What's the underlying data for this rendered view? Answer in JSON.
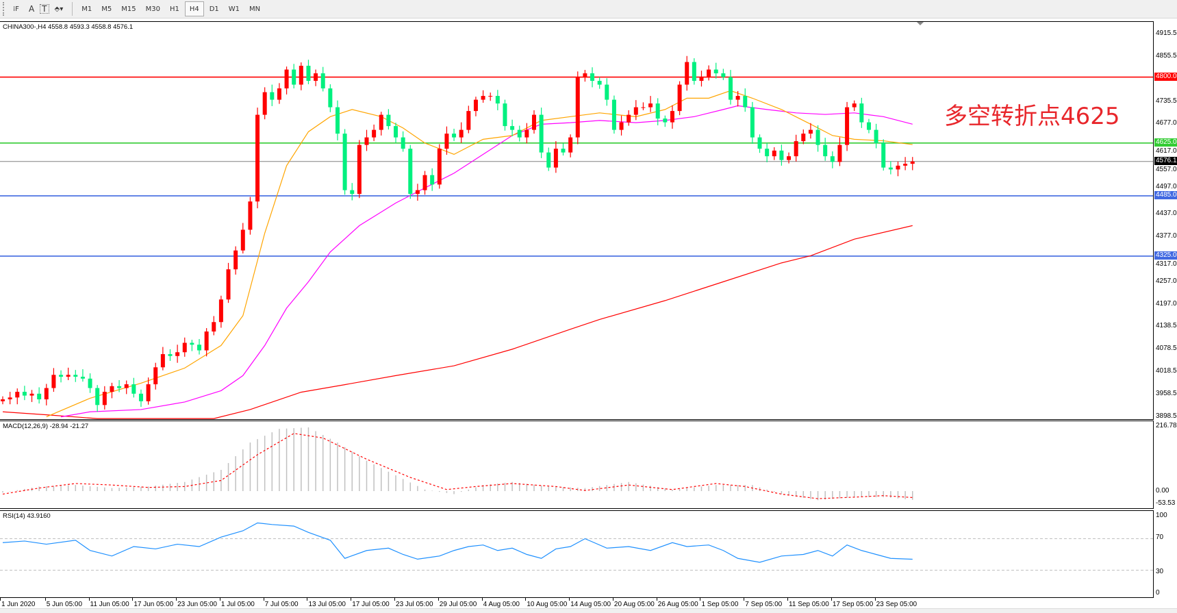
{
  "toolbar": {
    "tools": [
      {
        "name": "period-separator-icon",
        "glyph": "⁞F"
      },
      {
        "name": "text-tool-icon",
        "glyph": "A"
      },
      {
        "name": "text-label-tool-icon",
        "glyph": "T"
      },
      {
        "name": "arrows-tool-icon",
        "glyph": "⬘▾"
      }
    ],
    "timeframes": [
      "M1",
      "M5",
      "M15",
      "M30",
      "H1",
      "H4",
      "D1",
      "W1",
      "MN"
    ],
    "active_timeframe": "H4"
  },
  "main": {
    "title": "CHINA300-,H4  4558.8 4593.3 4558.8 4576.1",
    "annotation": "多空转折点4625",
    "price_ticks": [
      "4915.5",
      "4855.5",
      "4735.5",
      "4677.0",
      "4617.0",
      "4557.0",
      "4497.0",
      "4437.0",
      "4377.0",
      "4317.0",
      "4257.0",
      "4197.0",
      "4138.5",
      "4078.5",
      "4018.5",
      "3958.5",
      "3898.5"
    ],
    "levels": [
      {
        "label": "4800.0",
        "value": 4800,
        "color": "#ff0000"
      },
      {
        "label": "4625.0",
        "value": 4625,
        "color": "#33cc33"
      },
      {
        "label": "4576.1",
        "value": 4576.1,
        "color": "#000000",
        "line": "#808080"
      },
      {
        "label": "4485.0",
        "value": 4485,
        "color": "#4169e1"
      },
      {
        "label": "4325.0",
        "value": 4325,
        "color": "#4169e1"
      }
    ]
  },
  "macd": {
    "title": "MACD(12,26,9) -28.94 -21.27",
    "ticks": [
      "216.78",
      "0.00",
      "-53.53"
    ]
  },
  "rsi": {
    "title": "RSI(14) 43.9160",
    "ticks": [
      "100",
      "70",
      "30",
      "0"
    ]
  },
  "time_labels": [
    "1 Jun 2020",
    "5 Jun 05:00",
    "11 Jun 05:00",
    "17 Jun 05:00",
    "23 Jun 05:00",
    "1 Jul 05:00",
    "7 Jul 05:00",
    "13 Jul 05:00",
    "17 Jul 05:00",
    "23 Jul 05:00",
    "29 Jul 05:00",
    "4 Aug 05:00",
    "10 Aug 05:00",
    "14 Aug 05:00",
    "20 Aug 05:00",
    "26 Aug 05:00",
    "1 Sep 05:00",
    "7 Sep 05:00",
    "11 Sep 05:00",
    "17 Sep 05:00",
    "23 Sep 05:00"
  ],
  "chart_data": {
    "type": "candlestick",
    "symbol": "CHINA300-",
    "timeframe": "H4",
    "ylim": [
      3898.5,
      4915.5
    ],
    "colors": {
      "up": "#ff0000",
      "down": "#00f07f",
      "ma_fast": "#ffa500",
      "ma_mid": "#ff00ff",
      "ma_slow": "#ff0000"
    },
    "closes": [
      3945,
      3950,
      3965,
      3955,
      3960,
      3945,
      3975,
      4010,
      4005,
      4010,
      4005,
      4000,
      3975,
      3930,
      3965,
      3980,
      3975,
      3985,
      3960,
      3940,
      3985,
      4030,
      4065,
      4060,
      4070,
      4095,
      4090,
      4075,
      4125,
      4150,
      4210,
      4290,
      4340,
      4395,
      4470,
      4700,
      4760,
      4740,
      4770,
      4820,
      4780,
      4830,
      4790,
      4810,
      4770,
      4720,
      4650,
      4500,
      4490,
      4620,
      4640,
      4660,
      4700,
      4670,
      4640,
      4610,
      4490,
      4500,
      4540,
      4515,
      4610,
      4650,
      4640,
      4660,
      4710,
      4740,
      4750,
      4750,
      4730,
      4670,
      4660,
      4640,
      4660,
      4700,
      4600,
      4560,
      4610,
      4600,
      4640,
      4800,
      4810,
      4790,
      4780,
      4740,
      4660,
      4680,
      4700,
      4720,
      4720,
      4730,
      4690,
      4680,
      4710,
      4780,
      4840,
      4790,
      4800,
      4820,
      4810,
      4800,
      4740,
      4750,
      4720,
      4640,
      4610,
      4590,
      4605,
      4580,
      4590,
      4630,
      4650,
      4660,
      4620,
      4590,
      4575,
      4620,
      4720,
      4730,
      4680,
      4660,
      4625,
      4560,
      4555,
      4565,
      4570,
      4576.1
    ],
    "ma_fast": [
      [
        6,
        3898.6
      ],
      [
        12,
        3948
      ],
      [
        19,
        3988
      ],
      [
        25,
        4028
      ],
      [
        30,
        4088
      ],
      [
        33,
        4167
      ],
      [
        36,
        4386
      ],
      [
        39,
        4565
      ],
      [
        42,
        4655
      ],
      [
        45,
        4695
      ],
      [
        48,
        4714
      ],
      [
        52,
        4695
      ],
      [
        55,
        4665
      ],
      [
        58,
        4625
      ],
      [
        62,
        4595
      ],
      [
        66,
        4635
      ],
      [
        70,
        4645
      ],
      [
        74,
        4685
      ],
      [
        78,
        4695
      ],
      [
        82,
        4705
      ],
      [
        87,
        4695
      ],
      [
        91,
        4714
      ],
      [
        94,
        4744
      ],
      [
        97,
        4744
      ],
      [
        100,
        4764
      ],
      [
        103,
        4744
      ],
      [
        107,
        4714
      ],
      [
        111,
        4675
      ],
      [
        114,
        4645
      ],
      [
        117,
        4635
      ],
      [
        121,
        4631
      ],
      [
        125,
        4621
      ]
    ],
    "ma_mid": [
      [
        8,
        3898.6
      ],
      [
        12,
        3912
      ],
      [
        19,
        3918
      ],
      [
        25,
        3938
      ],
      [
        30,
        3968
      ],
      [
        33,
        4008
      ],
      [
        36,
        4088
      ],
      [
        39,
        4187
      ],
      [
        42,
        4257
      ],
      [
        45,
        4336
      ],
      [
        49,
        4406
      ],
      [
        54,
        4466
      ],
      [
        58,
        4506
      ],
      [
        62,
        4545
      ],
      [
        66,
        4595
      ],
      [
        70,
        4645
      ],
      [
        74,
        4675
      ],
      [
        78,
        4679
      ],
      [
        82,
        4685
      ],
      [
        87,
        4679
      ],
      [
        91,
        4685
      ],
      [
        95,
        4695
      ],
      [
        99,
        4714
      ],
      [
        101,
        4724
      ],
      [
        105,
        4714
      ],
      [
        109,
        4705
      ],
      [
        113,
        4701
      ],
      [
        117,
        4705
      ],
      [
        121,
        4695
      ],
      [
        125,
        4675
      ]
    ],
    "ma_slow": [
      [
        0,
        3912
      ],
      [
        6,
        3904
      ],
      [
        13,
        3894
      ],
      [
        29,
        3894
      ],
      [
        34,
        3918
      ],
      [
        41,
        3964
      ],
      [
        47,
        3984
      ],
      [
        54,
        4008
      ],
      [
        62,
        4034
      ],
      [
        70,
        4078
      ],
      [
        78,
        4131
      ],
      [
        82,
        4157
      ],
      [
        91,
        4207
      ],
      [
        99,
        4257
      ],
      [
        107,
        4307
      ],
      [
        111,
        4326
      ],
      [
        117,
        4370
      ],
      [
        125,
        4406
      ]
    ],
    "macd_histogram": [
      [
        0,
        -5
      ],
      [
        5,
        15
      ],
      [
        10,
        20
      ],
      [
        15,
        10
      ],
      [
        20,
        15
      ],
      [
        25,
        30
      ],
      [
        30,
        70
      ],
      [
        34,
        160
      ],
      [
        38,
        205
      ],
      [
        42,
        210
      ],
      [
        46,
        160
      ],
      [
        50,
        100
      ],
      [
        55,
        40
      ],
      [
        58,
        5
      ],
      [
        62,
        -10
      ],
      [
        66,
        20
      ],
      [
        70,
        30
      ],
      [
        75,
        15
      ],
      [
        80,
        10
      ],
      [
        86,
        30
      ],
      [
        92,
        5
      ],
      [
        98,
        20
      ],
      [
        103,
        20
      ],
      [
        107,
        -10
      ],
      [
        112,
        -30
      ],
      [
        117,
        -20
      ],
      [
        121,
        -20
      ],
      [
        125,
        -28.94
      ]
    ],
    "macd_signal": [
      [
        0,
        -10
      ],
      [
        5,
        10
      ],
      [
        10,
        25
      ],
      [
        15,
        20
      ],
      [
        20,
        12
      ],
      [
        25,
        15
      ],
      [
        30,
        35
      ],
      [
        35,
        120
      ],
      [
        40,
        190
      ],
      [
        44,
        175
      ],
      [
        50,
        105
      ],
      [
        56,
        45
      ],
      [
        61,
        5
      ],
      [
        65,
        15
      ],
      [
        70,
        25
      ],
      [
        76,
        15
      ],
      [
        80,
        2
      ],
      [
        86,
        20
      ],
      [
        92,
        5
      ],
      [
        98,
        25
      ],
      [
        102,
        15
      ],
      [
        107,
        -10
      ],
      [
        112,
        -25
      ],
      [
        117,
        -20
      ],
      [
        121,
        -15
      ],
      [
        125,
        -21.27
      ]
    ],
    "macd_ylim": [
      -53.53,
      216.78
    ],
    "rsi": [
      [
        0,
        65
      ],
      [
        3,
        67
      ],
      [
        6,
        63
      ],
      [
        10,
        68
      ],
      [
        12,
        55
      ],
      [
        15,
        48
      ],
      [
        18,
        60
      ],
      [
        21,
        57
      ],
      [
        24,
        63
      ],
      [
        27,
        60
      ],
      [
        30,
        72
      ],
      [
        33,
        80
      ],
      [
        35,
        90
      ],
      [
        37,
        88
      ],
      [
        40,
        86
      ],
      [
        42,
        78
      ],
      [
        45,
        68
      ],
      [
        47,
        45
      ],
      [
        50,
        55
      ],
      [
        53,
        58
      ],
      [
        55,
        50
      ],
      [
        57,
        44
      ],
      [
        60,
        48
      ],
      [
        62,
        55
      ],
      [
        64,
        60
      ],
      [
        66,
        62
      ],
      [
        68,
        55
      ],
      [
        70,
        58
      ],
      [
        72,
        50
      ],
      [
        74,
        45
      ],
      [
        76,
        57
      ],
      [
        78,
        60
      ],
      [
        80,
        70
      ],
      [
        83,
        58
      ],
      [
        86,
        60
      ],
      [
        89,
        55
      ],
      [
        92,
        65
      ],
      [
        94,
        60
      ],
      [
        97,
        62
      ],
      [
        99,
        55
      ],
      [
        101,
        45
      ],
      [
        104,
        40
      ],
      [
        107,
        48
      ],
      [
        110,
        50
      ],
      [
        112,
        55
      ],
      [
        114,
        48
      ],
      [
        116,
        62
      ],
      [
        118,
        55
      ],
      [
        120,
        50
      ],
      [
        122,
        45
      ],
      [
        125,
        43.916
      ]
    ],
    "rsi_levels": [
      70,
      30
    ],
    "rsi_color": "#1e90ff"
  }
}
